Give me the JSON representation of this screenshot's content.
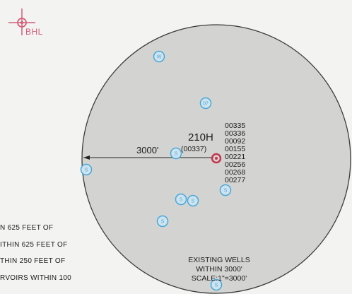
{
  "bhl_marker": {
    "label": "BHL",
    "color": "#d2607a"
  },
  "subject_well": {
    "name": "210H",
    "id": "(00337)",
    "color": "#c8334d"
  },
  "radius_label": "3000'",
  "existing_well_ids": [
    "00335",
    "00336",
    "00092",
    "00155",
    "00221",
    "00256",
    "00268",
    "00277"
  ],
  "existing_wells": [
    {
      "label": "W"
    },
    {
      "label": "07"
    },
    {
      "label": "S"
    },
    {
      "label": "S"
    },
    {
      "label": "S"
    },
    {
      "label": "S"
    },
    {
      "label": "S"
    },
    {
      "label": "S"
    },
    {
      "label": "S"
    }
  ],
  "notes": [
    "N 625 FEET OF",
    "ITHIN 625 FEET OF",
    "THIN 250 FEET OF",
    "RVOIRS WITHIN 100"
  ],
  "legend": {
    "line1": "EXISTING WELLS",
    "line2": "WITHIN 3000'",
    "line3": "SCALE:1\"=3000'"
  },
  "colors": {
    "circle_fill": "#d3d4d2",
    "circle_stroke": "#3a3a3a",
    "well_marker": "#49a9d8",
    "background": "#f3f3f1"
  },
  "icons": {
    "bhl": "crosshair-target-icon",
    "subject_well": "well-bullseye-icon",
    "existing_well": "well-circle-icon"
  }
}
